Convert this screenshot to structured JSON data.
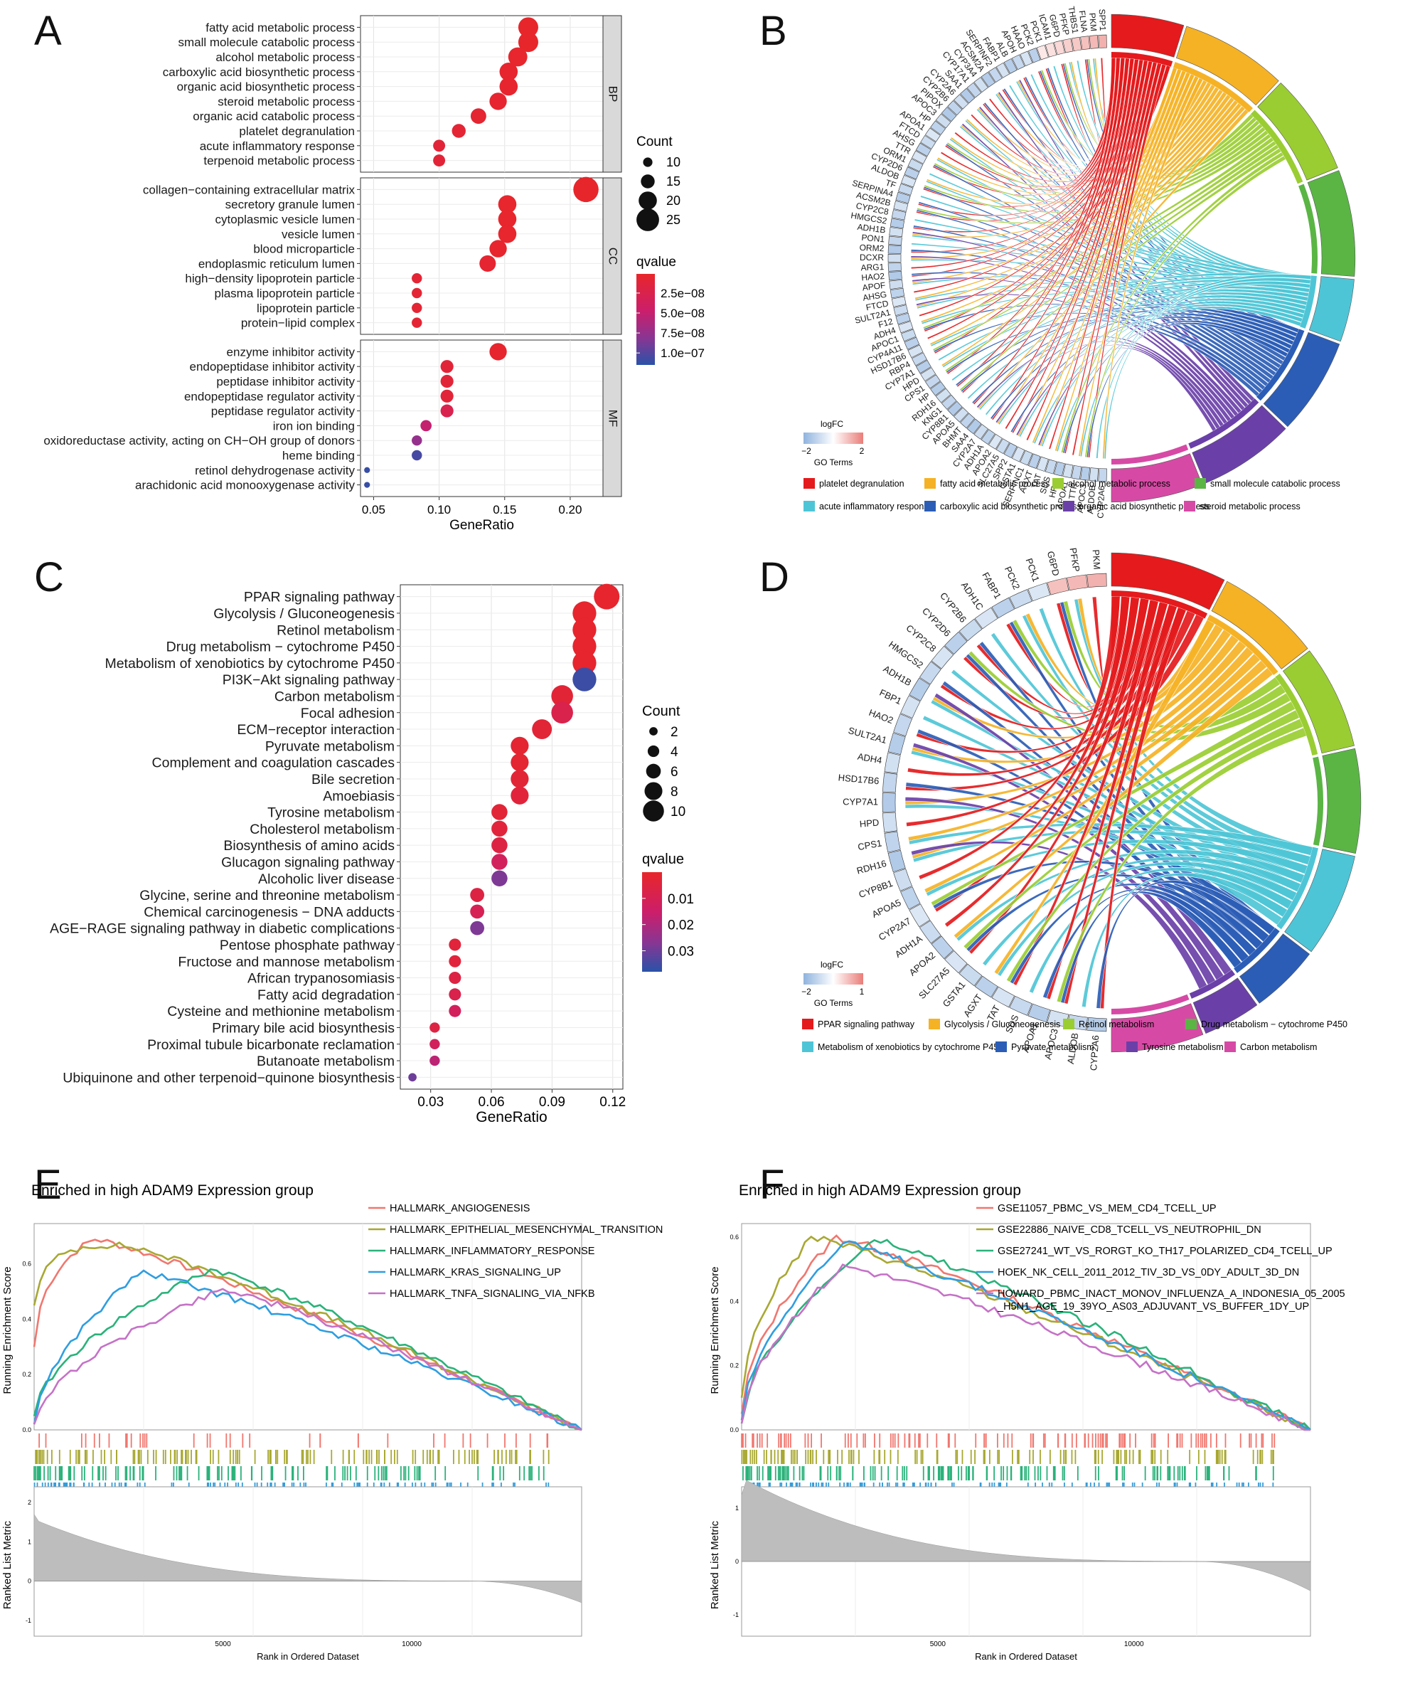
{
  "panels": {
    "A": "A",
    "B": "B",
    "C": "C",
    "D": "D",
    "E": "E",
    "F": "F"
  },
  "chart_data": [
    {
      "id": "A",
      "type": "scatter",
      "subtype": "dotplot",
      "xlabel": "GeneRatio",
      "xticks": [
        0.05,
        0.1,
        0.15,
        0.2
      ],
      "xtick_labels": [
        "0.05",
        "0.10",
        "0.15",
        "0.20"
      ],
      "xlim": [
        0.04,
        0.225
      ],
      "facets": [
        {
          "name": "BP",
          "terms": [
            {
              "label": "fatty acid metabolic process",
              "x": 0.168,
              "count": 22,
              "q": 1e-09
            },
            {
              "label": "small molecule catabolic process",
              "x": 0.168,
              "count": 22,
              "q": 1e-09
            },
            {
              "label": "alcohol metabolic process",
              "x": 0.16,
              "count": 21,
              "q": 2e-09
            },
            {
              "label": "carboxylic acid biosynthetic process",
              "x": 0.153,
              "count": 20,
              "q": 3e-09
            },
            {
              "label": "organic acid biosynthetic process",
              "x": 0.153,
              "count": 20,
              "q": 3e-09
            },
            {
              "label": "steroid metabolic process",
              "x": 0.145,
              "count": 19,
              "q": 4e-09
            },
            {
              "label": "organic acid catabolic process",
              "x": 0.13,
              "count": 17,
              "q": 6e-09
            },
            {
              "label": "platelet degranulation",
              "x": 0.115,
              "count": 15,
              "q": 8e-09
            },
            {
              "label": "acute inflammatory response",
              "x": 0.1,
              "count": 13,
              "q": 1e-08
            },
            {
              "label": "terpenoid metabolic process",
              "x": 0.1,
              "count": 13,
              "q": 1e-08
            }
          ]
        },
        {
          "name": "CC",
          "terms": [
            {
              "label": "collagen−containing extracellular matrix",
              "x": 0.212,
              "count": 28,
              "q": 1e-09
            },
            {
              "label": "secretory granule lumen",
              "x": 0.152,
              "count": 20,
              "q": 2e-09
            },
            {
              "label": "cytoplasmic vesicle lumen",
              "x": 0.152,
              "count": 20,
              "q": 2e-09
            },
            {
              "label": "vesicle lumen",
              "x": 0.152,
              "count": 20,
              "q": 2e-09
            },
            {
              "label": "blood microparticle",
              "x": 0.145,
              "count": 19,
              "q": 3e-09
            },
            {
              "label": "endoplasmic reticulum lumen",
              "x": 0.137,
              "count": 18,
              "q": 5e-09
            },
            {
              "label": "high−density lipoprotein particle",
              "x": 0.083,
              "count": 11,
              "q": 8e-09
            },
            {
              "label": "plasma lipoprotein particle",
              "x": 0.083,
              "count": 11,
              "q": 8e-09
            },
            {
              "label": "lipoprotein particle",
              "x": 0.083,
              "count": 11,
              "q": 8e-09
            },
            {
              "label": "protein−lipid complex",
              "x": 0.083,
              "count": 11,
              "q": 8e-09
            }
          ]
        },
        {
          "name": "MF",
          "terms": [
            {
              "label": "enzyme inhibitor activity",
              "x": 0.145,
              "count": 19,
              "q": 3e-09
            },
            {
              "label": "endopeptidase inhibitor activity",
              "x": 0.106,
              "count": 14,
              "q": 1e-08
            },
            {
              "label": "peptidase inhibitor activity",
              "x": 0.106,
              "count": 14,
              "q": 1e-08
            },
            {
              "label": "endopeptidase regulator activity",
              "x": 0.106,
              "count": 14,
              "q": 1e-08
            },
            {
              "label": "peptidase regulator activity",
              "x": 0.106,
              "count": 14,
              "q": 2.5e-08
            },
            {
              "label": "iron ion binding",
              "x": 0.09,
              "count": 12,
              "q": 5e-08
            },
            {
              "label": "oxidoreductase activity, acting on CH−OH group of donors",
              "x": 0.083,
              "count": 11,
              "q": 7.5e-08
            },
            {
              "label": "heme binding",
              "x": 0.083,
              "count": 11,
              "q": 1.05e-07
            },
            {
              "label": "retinol dehydrogenase activity",
              "x": 0.045,
              "count": 6,
              "q": 1.1e-07
            },
            {
              "label": "arachidonic acid monooxygenase activity",
              "x": 0.045,
              "count": 6,
              "q": 1.1e-07
            }
          ]
        }
      ],
      "count_legend": {
        "title": "Count",
        "values": [
          10,
          15,
          20,
          25
        ],
        "labels": [
          "10",
          "15",
          "20",
          "25"
        ]
      },
      "q_legend": {
        "title": "qvalue",
        "range": [
          1e-09,
          1.15e-07
        ],
        "ticks": [
          2.5e-08,
          5e-08,
          7.5e-08,
          1e-07
        ],
        "labels": [
          "2.5e−08",
          "5.0e−08",
          "7.5e−08",
          "1.0e−07"
        ]
      }
    },
    {
      "id": "B",
      "type": "chord",
      "genes": [
        "SPP1",
        "PKM",
        "FLNA",
        "THBS1",
        "PFKP",
        "G6PD",
        "ICAM1",
        "PCK1",
        "PCK2",
        "HAAO",
        "APOH",
        "ALB",
        "FABP1",
        "SERPINF2",
        "ACSM2A",
        "CYP3A4",
        "CYP17A1",
        "SAA1",
        "CYP2A6",
        "CYP2B6",
        "PIPOX",
        "APOC3",
        "HP",
        "APOA1",
        "FTCD",
        "AHSG",
        "TTR",
        "ORM1",
        "CYP2D6",
        "ALDOB",
        "TF",
        "SERPINA4",
        "ACSM2B",
        "CYP2C8",
        "HMGCS2",
        "ADH1B",
        "PON1",
        "ORM2",
        "DCXR",
        "ARG1",
        "HAO2",
        "APOF",
        "AHSG",
        "FTCD",
        "SULT2A1",
        "F12",
        "ADH4",
        "APOC1",
        "CYP4A11",
        "HSD17B6",
        "RBP4",
        "CYP7A1",
        "HPD",
        "CPS1",
        "HP",
        "RDH16",
        "KNG1",
        "CYP8B1",
        "APOA5",
        "BHMT",
        "SAA4",
        "CYP2A7",
        "ADH1A",
        "APOA2",
        "SLC27A5",
        "SPP2",
        "GSTA1",
        "SERPINC1",
        "AGXT",
        "TAT",
        "SDS",
        "HRG",
        "APOA1",
        "TTR",
        "APOC3",
        "ALDOB",
        "CYP2A6"
      ],
      "genes_upregulated": 8,
      "logfc_legend": {
        "title": "logFC",
        "min": -2,
        "max": 2,
        "min_label": "−2",
        "max_label": "2"
      },
      "go_terms_label": "GO Terms",
      "terms": [
        {
          "label": "platelet degranulation",
          "color": "#e41a1c",
          "weight": 15
        },
        {
          "label": "fatty acid metabolic process",
          "color": "#f5b225",
          "weight": 22
        },
        {
          "label": "alcohol metabolic process",
          "color": "#9acd32",
          "weight": 21
        },
        {
          "label": "small molecule catabolic process",
          "color": "#5ab545",
          "weight": 22
        },
        {
          "label": "acute inflammatory response",
          "color": "#4ec5d6",
          "weight": 13
        },
        {
          "label": "carboxylic acid biosynthetic process",
          "color": "#2b5db6",
          "weight": 20
        },
        {
          "label": "organic acid biosynthetic process",
          "color": "#6a40a8",
          "weight": 20
        },
        {
          "label": "steroid metabolic process",
          "color": "#d64aa5",
          "weight": 19
        }
      ]
    },
    {
      "id": "C",
      "type": "scatter",
      "subtype": "dotplot",
      "xlabel": "GeneRatio",
      "xticks": [
        0.03,
        0.06,
        0.09,
        0.12
      ],
      "xtick_labels": [
        "0.03",
        "0.06",
        "0.09",
        "0.12"
      ],
      "xlim": [
        0.015,
        0.125
      ],
      "terms": [
        {
          "label": "PPAR signaling pathway",
          "x": 0.117,
          "count": 10,
          "q": 0.001
        },
        {
          "label": "Glycolysis / Gluconeogenesis",
          "x": 0.106,
          "count": 9,
          "q": 0.001
        },
        {
          "label": "Retinol metabolism",
          "x": 0.106,
          "count": 9,
          "q": 0.001
        },
        {
          "label": "Drug metabolism − cytochrome P450",
          "x": 0.106,
          "count": 9,
          "q": 0.001
        },
        {
          "label": "Metabolism of xenobiotics by cytochrome P450",
          "x": 0.106,
          "count": 9,
          "q": 0.001
        },
        {
          "label": "PI3K−Akt signaling pathway",
          "x": 0.106,
          "count": 9,
          "q": 0.036
        },
        {
          "label": "Carbon metabolism",
          "x": 0.095,
          "count": 8,
          "q": 0.003
        },
        {
          "label": "Focal adhesion",
          "x": 0.095,
          "count": 8,
          "q": 0.008
        },
        {
          "label": "ECM−receptor interaction",
          "x": 0.085,
          "count": 7,
          "q": 0.003
        },
        {
          "label": "Pyruvate metabolism",
          "x": 0.074,
          "count": 6,
          "q": 0.002
        },
        {
          "label": "Complement and coagulation cascades",
          "x": 0.074,
          "count": 6,
          "q": 0.002
        },
        {
          "label": "Bile secretion",
          "x": 0.074,
          "count": 6,
          "q": 0.003
        },
        {
          "label": "Amoebiasis",
          "x": 0.074,
          "count": 6,
          "q": 0.004
        },
        {
          "label": "Tyrosine metabolism",
          "x": 0.064,
          "count": 5,
          "q": 0.003
        },
        {
          "label": "Cholesterol metabolism",
          "x": 0.064,
          "count": 5,
          "q": 0.004
        },
        {
          "label": "Biosynthesis of amino acids",
          "x": 0.064,
          "count": 5,
          "q": 0.006
        },
        {
          "label": "Glucagon signaling pathway",
          "x": 0.064,
          "count": 5,
          "q": 0.012
        },
        {
          "label": "Alcoholic liver disease",
          "x": 0.064,
          "count": 5,
          "q": 0.028
        },
        {
          "label": "Glycine, serine and threonine metabolism",
          "x": 0.053,
          "count": 4,
          "q": 0.006
        },
        {
          "label": "Chemical carcinogenesis − DNA adducts",
          "x": 0.053,
          "count": 4,
          "q": 0.01
        },
        {
          "label": "AGE−RAGE signaling pathway in diabetic complications",
          "x": 0.053,
          "count": 4,
          "q": 0.028
        },
        {
          "label": "Pentose phosphate pathway",
          "x": 0.042,
          "count": 3,
          "q": 0.004
        },
        {
          "label": "Fructose and mannose metabolism",
          "x": 0.042,
          "count": 3,
          "q": 0.004
        },
        {
          "label": "African trypanosomiasis",
          "x": 0.042,
          "count": 3,
          "q": 0.006
        },
        {
          "label": "Fatty acid degradation",
          "x": 0.042,
          "count": 3,
          "q": 0.008
        },
        {
          "label": "Cysteine and methionine metabolism",
          "x": 0.042,
          "count": 3,
          "q": 0.012
        },
        {
          "label": "Primary bile acid biosynthesis",
          "x": 0.032,
          "count": 2,
          "q": 0.006
        },
        {
          "label": "Proximal tubule bicarbonate reclamation",
          "x": 0.032,
          "count": 2,
          "q": 0.012
        },
        {
          "label": "Butanoate metabolism",
          "x": 0.032,
          "count": 2,
          "q": 0.018
        },
        {
          "label": "Ubiquinone and other terpenoid−quinone biosynthesis",
          "x": 0.021,
          "count": 1,
          "q": 0.03
        }
      ],
      "count_legend": {
        "title": "Count",
        "values": [
          2,
          4,
          6,
          8,
          10
        ],
        "labels": [
          "2",
          "4",
          "6",
          "8",
          "10"
        ]
      },
      "q_legend": {
        "title": "qvalue",
        "range": [
          0.0,
          0.038
        ],
        "ticks": [
          0.01,
          0.02,
          0.03
        ],
        "labels": [
          "0.01",
          "0.02",
          "0.03"
        ]
      }
    },
    {
      "id": "D",
      "type": "chord",
      "genes": [
        "PKM",
        "PFKP",
        "G6PD",
        "PCK1",
        "PCK2",
        "FABP1",
        "ADH1C",
        "CYP2B6",
        "CYP2D6",
        "CYP2C8",
        "HMGCS2",
        "ADH1B",
        "FBP1",
        "HAO2",
        "SULT2A1",
        "ADH4",
        "HSD17B6",
        "CYP7A1",
        "HPD",
        "CPS1",
        "RDH16",
        "CYP8B1",
        "APOA5",
        "CYP2A7",
        "ADH1A",
        "APOA2",
        "SLC27A5",
        "GSTA1",
        "AGXT",
        "TAT",
        "SDS",
        "APOA1",
        "APOC3",
        "ALDOB",
        "CYP2A6"
      ],
      "genes_upregulated": 3,
      "logfc_legend": {
        "title": "logFC",
        "min": -2,
        "max": 1,
        "min_label": "−2",
        "max_label": "1"
      },
      "go_terms_label": "GO Terms",
      "terms": [
        {
          "label": "PPAR signaling pathway",
          "color": "#e41a1c",
          "weight": 10
        },
        {
          "label": "Glycolysis / Gluconeogenesis",
          "color": "#f5b225",
          "weight": 9
        },
        {
          "label": "Retinol metabolism",
          "color": "#9acd32",
          "weight": 9
        },
        {
          "label": "Drug metabolism − cytochrome P450",
          "color": "#5ab545",
          "weight": 9
        },
        {
          "label": "Metabolism of xenobiotics by cytochrome P450",
          "color": "#4ec5d6",
          "weight": 9
        },
        {
          "label": "Pyruvate metabolism",
          "color": "#2b5db6",
          "weight": 6
        },
        {
          "label": "Tyrosine metabolism",
          "color": "#6a40a8",
          "weight": 5
        },
        {
          "label": "Carbon metabolism",
          "color": "#d64aa5",
          "weight": 8
        }
      ]
    },
    {
      "id": "E",
      "type": "line",
      "subtype": "gsea",
      "title": "Enriched in high ADAM9 Expression group",
      "ylabel": "Running Enrichment Score",
      "ylabel2": "Ranked List Metric",
      "xlabel": "Rank in Ordered Dataset",
      "xlim": [
        0,
        14500
      ],
      "ylim": [
        0,
        0.72
      ],
      "xticks": [
        5000,
        10000
      ],
      "xtick_labels": [
        "5000",
        "10000"
      ],
      "metric_ticks": [
        2,
        1,
        0,
        -1
      ],
      "metric_tick_labels": [
        "2",
        "1",
        "0",
        "-1"
      ],
      "es_ticks": [
        0.0,
        0.2,
        0.4,
        0.6
      ],
      "es_tick_labels": [
        "0.0",
        "0.2",
        "0.4",
        "0.6"
      ],
      "series": [
        {
          "name": "HALLMARK_ANGIOGENESIS",
          "color": "#f0776f",
          "peak_rank": 1600,
          "peak": 0.69,
          "hits": 38,
          "start": 0.3
        },
        {
          "name": "HALLMARK_EPITHELIAL_MESENCHYMAL_TRANSITION",
          "color": "#a8a832",
          "peak_rank": 2600,
          "peak": 0.66,
          "hits": 120,
          "start": 0.45
        },
        {
          "name": "HALLMARK_INFLAMMATORY_RESPONSE",
          "color": "#2ab27a",
          "peak_rank": 4700,
          "peak": 0.58,
          "hits": 110,
          "start": 0.05
        },
        {
          "name": "HALLMARK_KRAS_SIGNALING_UP",
          "color": "#2f9ee0",
          "peak_rank": 2800,
          "peak": 0.57,
          "hits": 110,
          "start": 0.02
        },
        {
          "name": "HALLMARK_TNFA_SIGNALING_VIA_NFKB",
          "color": "#c572c7",
          "peak_rank": 5000,
          "peak": 0.51,
          "hits": 120,
          "start": 0.02
        }
      ]
    },
    {
      "id": "F",
      "type": "line",
      "subtype": "gsea",
      "title": "Enriched in high ADAM9 Expression group",
      "ylabel": "Running Enrichment Score",
      "ylabel2": "Ranked List Metric",
      "xlabel": "Rank in Ordered Dataset",
      "xlim": [
        0,
        14500
      ],
      "ylim": [
        0,
        0.62
      ],
      "xticks": [
        5000,
        10000
      ],
      "xtick_labels": [
        "5000",
        "10000"
      ],
      "metric_ticks": [
        1,
        0,
        -1
      ],
      "metric_tick_labels": [
        "1",
        "0",
        "-1"
      ],
      "es_ticks": [
        0.0,
        0.2,
        0.4,
        0.6
      ],
      "es_tick_labels": [
        "0.0",
        "0.2",
        "0.4",
        "0.6"
      ],
      "series": [
        {
          "name": "GSE11057_PBMC_VS_MEM_CD4_TCELL_UP",
          "color": "#f0776f",
          "peak_rank": 2400,
          "peak": 0.6,
          "hits": 110,
          "start": 0.05
        },
        {
          "name": "GSE22886_NAIVE_CD8_TCELL_VS_NEUTROPHIL_DN",
          "color": "#a8a832",
          "peak_rank": 1800,
          "peak": 0.6,
          "hits": 120,
          "start": 0.1
        },
        {
          "name": "GSE27241_WT_VS_RORGT_KO_TH17_POLARIZED_CD4_TCELL_UP",
          "color": "#2ab27a",
          "peak_rank": 3400,
          "peak": 0.59,
          "hits": 130,
          "start": 0.02
        },
        {
          "name": "HOEK_NK_CELL_2011_2012_TIV_3D_VS_0DY_ADULT_3D_DN",
          "color": "#2f9ee0",
          "peak_rank": 2600,
          "peak": 0.58,
          "hits": 120,
          "start": 0.03
        },
        {
          "name": "HOWARD_PBMC_INACT_MONOV_INFLUENZA_A_INDONESIA_05_2005_H5N1_AGE_19_39YO_AS03_ADJUVANT_VS_BUFFER_1DY_UP",
          "label_lines": [
            "HOWARD_PBMC_INACT_MONOV_INFLUENZA_A_INDONESIA_05_2005",
            "_H5N1_AGE_19_39YO_AS03_ADJUVANT_VS_BUFFER_1DY_UP"
          ],
          "color": "#c572c7",
          "peak_rank": 2600,
          "peak": 0.51,
          "hits": 120,
          "start": 0.02
        }
      ]
    }
  ]
}
